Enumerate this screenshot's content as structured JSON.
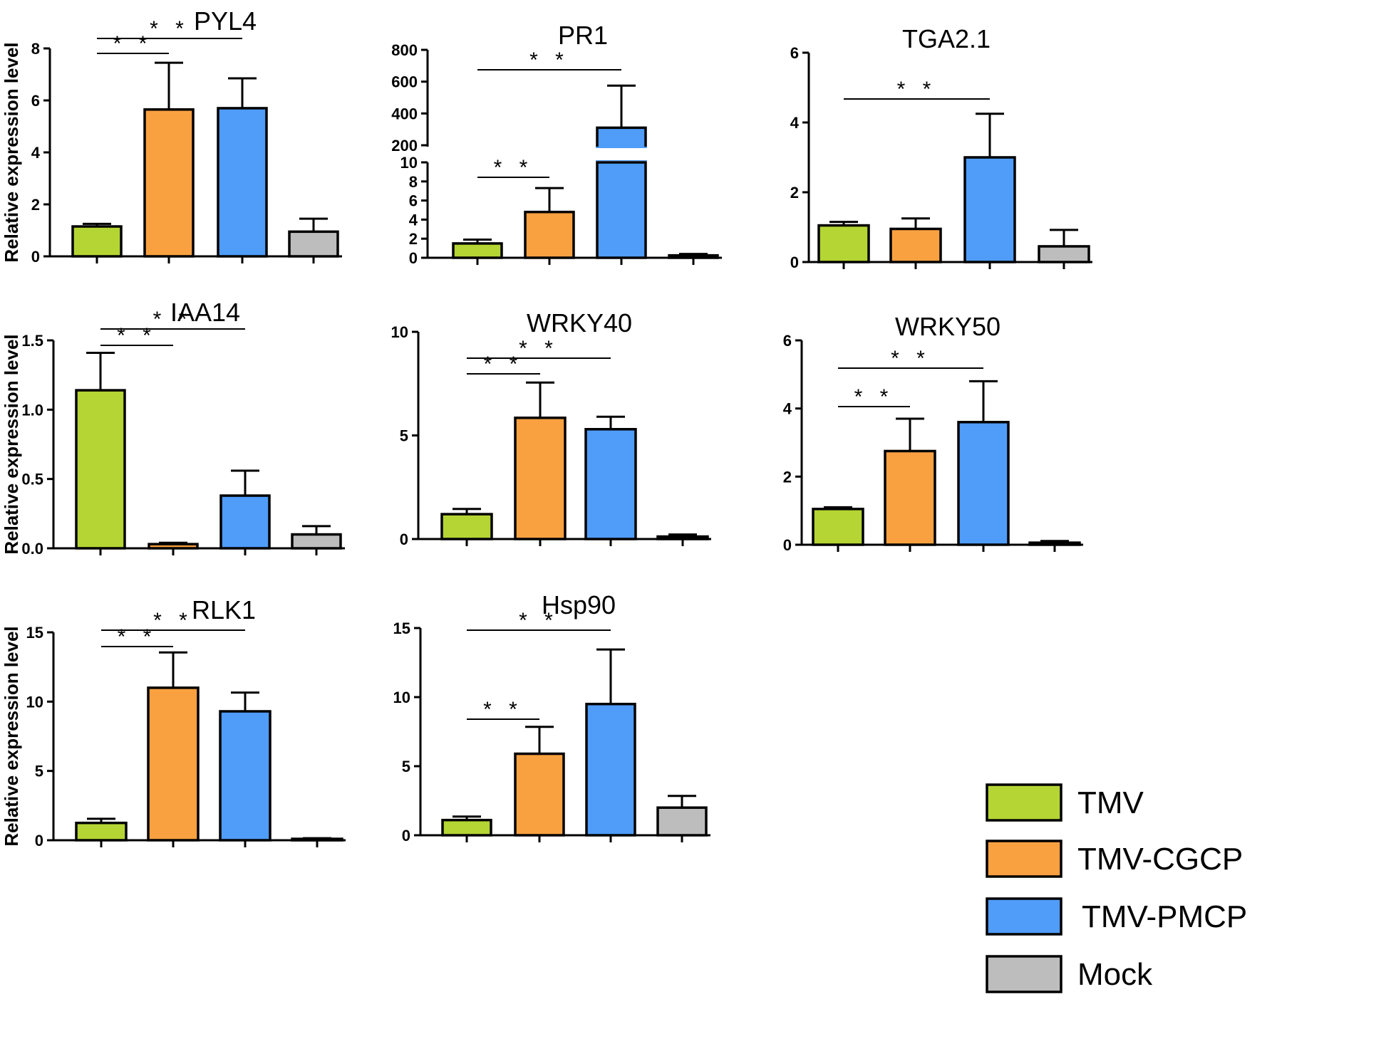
{
  "chart_data": [
    {
      "type": "bar",
      "title": "PYL4",
      "ylabel": "Relative expression level",
      "categories": [
        "TMV",
        "TMV-CGCP",
        "TMV-PMCP",
        "Mock"
      ],
      "values": [
        1.15,
        5.65,
        5.7,
        0.95
      ],
      "errors": [
        0.1,
        1.8,
        1.15,
        0.5
      ],
      "ylim": [
        0,
        8
      ],
      "yticks": [
        "0",
        "2",
        "4",
        "6",
        "8"
      ],
      "significance": [
        {
          "from": 0,
          "to": 1,
          "label": "* *"
        },
        {
          "from": 0,
          "to": 2,
          "label": "* *"
        }
      ]
    },
    {
      "type": "bar",
      "title": "PR1",
      "ylabel": "",
      "categories": [
        "TMV",
        "TMV-CGCP",
        "TMV-PMCP",
        "Mock"
      ],
      "values": [
        1.5,
        4.8,
        310,
        0.25
      ],
      "errors": [
        0.4,
        2.5,
        265,
        0.15
      ],
      "ylim": [
        0,
        800
      ],
      "axis_break": {
        "lower": [
          0,
          10
        ],
        "upper": [
          150,
          800
        ]
      },
      "yticks_lower": [
        "0",
        "2",
        "4",
        "6",
        "8",
        "10"
      ],
      "yticks_upper": [
        "200",
        "400",
        "600",
        "800"
      ],
      "significance": [
        {
          "from": 0,
          "to": 1,
          "label": "* *"
        },
        {
          "from": 0,
          "to": 2,
          "label": "* *"
        }
      ]
    },
    {
      "type": "bar",
      "title": "TGA2.1",
      "ylabel": "",
      "categories": [
        "TMV",
        "TMV-CGCP",
        "TMV-PMCP",
        "Mock"
      ],
      "values": [
        1.05,
        0.95,
        3.0,
        0.45
      ],
      "errors": [
        0.1,
        0.3,
        1.25,
        0.47
      ],
      "ylim": [
        0,
        6
      ],
      "yticks": [
        "0",
        "2",
        "4",
        "6"
      ],
      "significance": [
        {
          "from": 0,
          "to": 2,
          "label": "* *"
        }
      ]
    },
    {
      "type": "bar",
      "title": "IAA14",
      "ylabel": "Relative expression level",
      "categories": [
        "TMV",
        "TMV-CGCP",
        "TMV-PMCP",
        "Mock"
      ],
      "values": [
        1.14,
        0.03,
        0.38,
        0.1
      ],
      "errors": [
        0.27,
        0.01,
        0.18,
        0.06
      ],
      "ylim": [
        0,
        1.5
      ],
      "yticks": [
        "0.0",
        "0.5",
        "1.0",
        "1.5"
      ],
      "significance": [
        {
          "from": 0,
          "to": 1,
          "label": "* *"
        },
        {
          "from": 0,
          "to": 2,
          "label": "* *"
        }
      ]
    },
    {
      "type": "bar",
      "title": "WRKY40",
      "ylabel": "",
      "categories": [
        "TMV",
        "TMV-CGCP",
        "TMV-PMCP",
        "Mock"
      ],
      "values": [
        1.2,
        5.85,
        5.3,
        0.12
      ],
      "errors": [
        0.25,
        1.7,
        0.6,
        0.1
      ],
      "ylim": [
        0,
        10
      ],
      "yticks": [
        "0",
        "5",
        "10"
      ],
      "significance": [
        {
          "from": 0,
          "to": 1,
          "label": "* *"
        },
        {
          "from": 0,
          "to": 2,
          "label": "* *"
        }
      ]
    },
    {
      "type": "bar",
      "title": "WRKY50",
      "ylabel": "",
      "categories": [
        "TMV",
        "TMV-CGCP",
        "TMV-PMCP",
        "Mock"
      ],
      "values": [
        1.05,
        2.75,
        3.6,
        0.06
      ],
      "errors": [
        0.05,
        0.95,
        1.2,
        0.05
      ],
      "ylim": [
        0,
        6
      ],
      "yticks": [
        "0",
        "2",
        "4",
        "6"
      ],
      "significance": [
        {
          "from": 0,
          "to": 1,
          "label": "* *"
        },
        {
          "from": 0,
          "to": 2,
          "label": "* *"
        }
      ]
    },
    {
      "type": "bar",
      "title": "RLK1",
      "ylabel": "Relative expression level",
      "categories": [
        "TMV",
        "TMV-CGCP",
        "TMV-PMCP",
        "Mock"
      ],
      "values": [
        1.25,
        11.0,
        9.3,
        0.1
      ],
      "errors": [
        0.3,
        2.55,
        1.35,
        0.05
      ],
      "ylim": [
        0,
        15
      ],
      "yticks": [
        "0",
        "5",
        "10",
        "15"
      ],
      "significance": [
        {
          "from": 0,
          "to": 1,
          "label": "* *"
        },
        {
          "from": 0,
          "to": 2,
          "label": "* *"
        }
      ]
    },
    {
      "type": "bar",
      "title": "Hsp90",
      "ylabel": "",
      "categories": [
        "TMV",
        "TMV-CGCP",
        "TMV-PMCP",
        "Mock"
      ],
      "values": [
        1.1,
        5.9,
        9.5,
        2.0
      ],
      "errors": [
        0.25,
        1.95,
        3.95,
        0.85
      ],
      "ylim": [
        0,
        15
      ],
      "yticks": [
        "0",
        "5",
        "10",
        "15"
      ],
      "significance": [
        {
          "from": 0,
          "to": 1,
          "label": "* *"
        },
        {
          "from": 0,
          "to": 2,
          "label": "* *"
        }
      ]
    }
  ],
  "legend": [
    {
      "label": "TMV",
      "color": "#b5d534"
    },
    {
      "label": "TMV-CGCP",
      "color": "#f9a141"
    },
    {
      "label": "TMV-PMCP",
      "color": "#4f9cf9"
    },
    {
      "label": "Mock",
      "color": "#bdbdbd"
    }
  ]
}
